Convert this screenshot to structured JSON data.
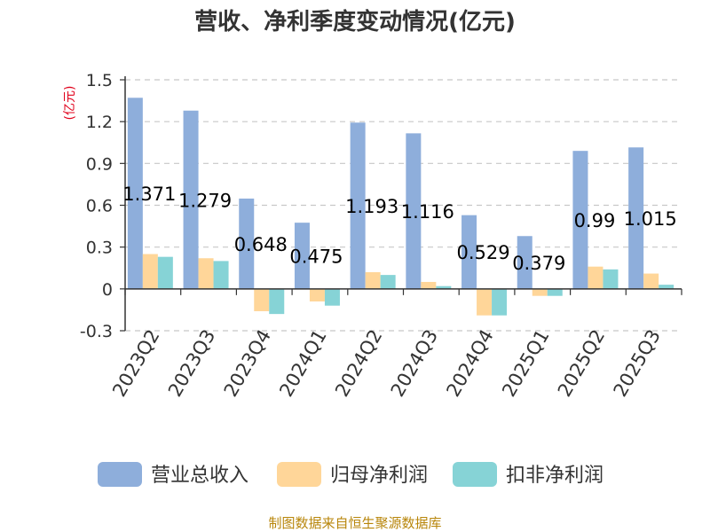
{
  "chart_data": {
    "type": "bar",
    "title": "营收、净利季度变动情况(亿元)",
    "unit_label": "(亿元)",
    "categories": [
      "2023Q2",
      "2023Q3",
      "2023Q4",
      "2024Q1",
      "2024Q2",
      "2024Q3",
      "2024Q4",
      "2025Q1",
      "2025Q2",
      "2025Q3"
    ],
    "series": [
      {
        "name": "营业总收入",
        "color": "#8eaedb",
        "values": [
          1.371,
          1.279,
          0.648,
          0.475,
          1.193,
          1.116,
          0.529,
          0.379,
          0.99,
          1.015
        ],
        "value_labels": [
          "1.371",
          "1.279",
          "0.648",
          "0.475",
          "1.193",
          "1.116",
          "0.529",
          "0.379",
          "0.99",
          "1.015"
        ]
      },
      {
        "name": "归母净利润",
        "color": "#ffd699",
        "values": [
          0.25,
          0.22,
          -0.16,
          -0.09,
          0.12,
          0.05,
          -0.19,
          -0.05,
          0.16,
          0.11
        ]
      },
      {
        "name": "扣非净利润",
        "color": "#86d3d6",
        "values": [
          0.23,
          0.2,
          -0.18,
          -0.12,
          0.1,
          0.02,
          -0.19,
          -0.05,
          0.14,
          0.03
        ]
      }
    ],
    "ylim": [
      -0.3,
      1.5
    ],
    "yticks": [
      "-0.3",
      "0",
      "0.3",
      "0.6",
      "0.9",
      "1.2",
      "1.5"
    ],
    "grid": true,
    "legend_position": "bottom"
  },
  "footer": {
    "source": "制图数据来自恒生聚源数据库"
  }
}
